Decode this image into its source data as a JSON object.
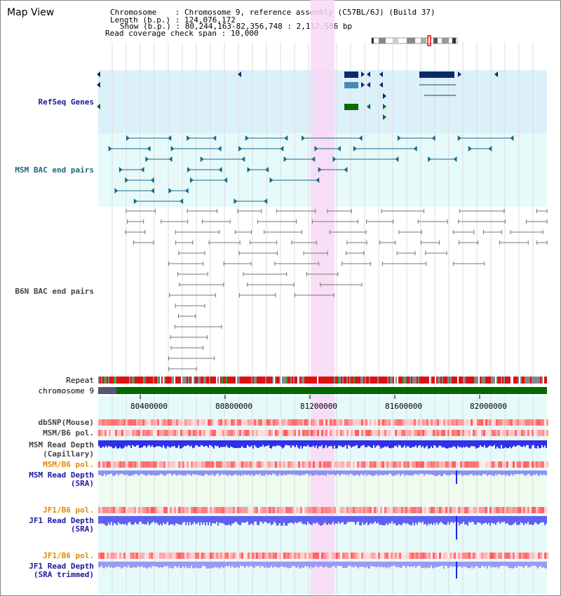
{
  "title": "Map View",
  "info": {
    "chromosome_label": "Chromosome",
    "chromosome_value": "Chromosome 9, reference assembly (C57BL/6J) (Build 37)",
    "length_label": "Length (b.p.)",
    "length_value": "124,076,172",
    "show_label": "Show (b.p.)",
    "show_value": "80,244,163-82,356,748 : 2,112,586 bp",
    "coverage_label": "Read coverage check span",
    "coverage_value": "10,000"
  },
  "tracks": {
    "refseq": "RefSeq Genes",
    "msm_bac": "MSM BAC end pairs",
    "b6n_bac": "B6N BAC end pairs",
    "repeat": "Repeat",
    "chromosome": "chromosome 9",
    "dbsnp": "dbSNP(Mouse)",
    "msm_b6_pol_1": "MSM/B6 pol.",
    "msm_depth_cap_1": "MSM Read Depth",
    "msm_depth_cap_2": "(Capillary)",
    "msm_b6_pol_2": "MSM/B6 pol.",
    "msm_depth_sra_1": "MSM Read Depth",
    "msm_depth_sra_2": "(SRA)",
    "jf1_b6_pol_1": "JF1/B6 pol.",
    "jf1_depth_sra_1": "JF1 Read Depth",
    "jf1_depth_sra_2": "(SRA)",
    "jf1_b6_pol_2": "JF1/B6 pol.",
    "jf1_depth_trim_1": "JF1 Read Depth",
    "jf1_depth_trim_2": "(SRA trimmed)"
  },
  "axis_ticks": [
    "80400000",
    "80800000",
    "81200000",
    "81600000",
    "82000000"
  ],
  "colors": {
    "refseq_bg": "#dcf0fa",
    "msm_bg": "#e6fafa",
    "depth_bg": "#f0fcf0",
    "highlight": "#f8d8f4",
    "refseq_gene": "#0a2a6a",
    "bac": "#1a6a8a",
    "b6n": "#777777",
    "depth": "#3a3af0",
    "chrom": "#006a00"
  }
}
